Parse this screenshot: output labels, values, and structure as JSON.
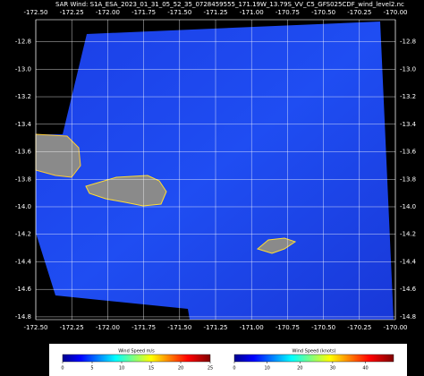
{
  "map": {
    "title": "SAR Wind: S1A_ESA_2023_01_31_05_52_35_0728459555_171.19W_13.79S_VV_C5_GFS025CDF_wind_level2.nc",
    "xlim": [
      -172.5,
      -170.0
    ],
    "ylim": [
      -12.64,
      -14.82
    ],
    "xticks": [
      {
        "value": -172.5,
        "label": "-172.50"
      },
      {
        "value": -172.25,
        "label": "-172.25"
      },
      {
        "value": -172.0,
        "label": "-172.00"
      },
      {
        "value": -171.75,
        "label": "-171.75"
      },
      {
        "value": -171.5,
        "label": "-171.50"
      },
      {
        "value": -171.25,
        "label": "-171.25"
      },
      {
        "value": -171.0,
        "label": "-171.00"
      },
      {
        "value": -170.75,
        "label": "-170.75"
      },
      {
        "value": -170.5,
        "label": "-170.50"
      },
      {
        "value": -170.25,
        "label": "-170.25"
      },
      {
        "value": -170.0,
        "label": "-170.00"
      }
    ],
    "yticks": [
      {
        "value": -12.8,
        "label": "-12.8"
      },
      {
        "value": -13.0,
        "label": "-13.0"
      },
      {
        "value": -13.2,
        "label": "-13.2"
      },
      {
        "value": -13.4,
        "label": "-13.4"
      },
      {
        "value": -13.6,
        "label": "-13.6"
      },
      {
        "value": -13.8,
        "label": "-13.8"
      },
      {
        "value": -14.0,
        "label": "-14.0"
      },
      {
        "value": -14.2,
        "label": "-14.2"
      },
      {
        "value": -14.4,
        "label": "-14.4"
      },
      {
        "value": -14.6,
        "label": "-14.6"
      },
      {
        "value": -14.8,
        "label": "-14.8"
      }
    ],
    "colorbars": [
      {
        "label": "Wind Speed m/s",
        "lim": [
          0,
          25
        ],
        "ticks": [
          0,
          5,
          10,
          15,
          20,
          25
        ]
      },
      {
        "label": "Wind Speed (knots)",
        "lim": [
          0,
          48.6
        ],
        "ticks": [
          0,
          10,
          20,
          30,
          40
        ]
      }
    ]
  }
}
